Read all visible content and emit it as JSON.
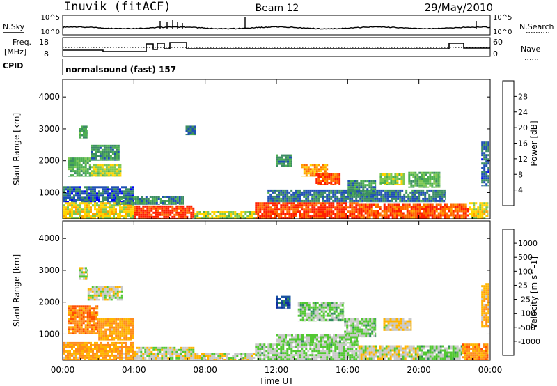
{
  "header": {
    "station": "Inuvik (fitACF)",
    "beam": "Beam 12",
    "date": "29/May/2010"
  },
  "noise_panel": {
    "left_label": "N.Sky",
    "right_label": "N.Search",
    "left_ticks": [
      "10^5",
      "10^0"
    ],
    "right_ticks": [
      "10^5",
      "10^0"
    ]
  },
  "freq_panel": {
    "left_label_line1": "Freq.",
    "left_label_line2": "[MHz]",
    "right_label": "Nave",
    "left_ticks": [
      "18",
      "8"
    ],
    "right_ticks": [
      "60",
      "0"
    ]
  },
  "cpid": {
    "label": "CPID",
    "value": "normalsound (fast) 157"
  },
  "colors": {
    "power_scale": [
      "#0000ff",
      "#1f4fb4",
      "#3c8c64",
      "#4caf50",
      "#7ec850",
      "#ffd400",
      "#ffa000",
      "#ff6a00",
      "#ff2000"
    ],
    "velocity_scale": [
      "#ff0000",
      "#ff5000",
      "#ff8c1a",
      "#ffb400",
      "#c8c8c8",
      "#52c832",
      "#2f8c5a",
      "#1a55a0",
      "#0f2da0"
    ]
  },
  "chart_data": [
    {
      "type": "heatmap",
      "title": "Power",
      "ylabel": "Slant Range [km]",
      "ylim": [
        180,
        4550
      ],
      "yticks": [
        1000,
        2000,
        3000,
        4000
      ],
      "xlim": [
        0,
        24
      ],
      "colorbar": {
        "label": "Power [dB]",
        "ticks": [
          "4",
          "8",
          "12",
          "16",
          "20",
          "24",
          "28"
        ],
        "range": [
          0,
          30
        ]
      },
      "regions": [
        {
          "t": [
            0.0,
            4.0
          ],
          "r": [
            180,
            700
          ],
          "v": 18
        },
        {
          "t": [
            4.0,
            7.4
          ],
          "r": [
            180,
            600
          ],
          "v": 28
        },
        {
          "t": [
            7.4,
            10.8
          ],
          "r": [
            180,
            420
          ],
          "v": 16
        },
        {
          "t": [
            10.8,
            16.6
          ],
          "r": [
            180,
            700
          ],
          "v": 27
        },
        {
          "t": [
            16.6,
            22.8
          ],
          "r": [
            180,
            650
          ],
          "v": 26
        },
        {
          "t": [
            22.8,
            23.9
          ],
          "r": [
            180,
            700
          ],
          "v": 18
        },
        {
          "t": [
            0.0,
            4.0
          ],
          "r": [
            700,
            1200
          ],
          "v": 6
        },
        {
          "t": [
            3.0,
            6.8
          ],
          "r": [
            620,
            900
          ],
          "v": 8
        },
        {
          "t": [
            11.5,
            21.5
          ],
          "r": [
            700,
            1100
          ],
          "v": 7
        },
        {
          "t": [
            0.3,
            1.6
          ],
          "r": [
            1500,
            2100
          ],
          "v": 12
        },
        {
          "t": [
            1.6,
            3.2
          ],
          "r": [
            2000,
            2500
          ],
          "v": 9
        },
        {
          "t": [
            1.6,
            3.3
          ],
          "r": [
            1500,
            1900
          ],
          "v": 16
        },
        {
          "t": [
            0.9,
            1.4
          ],
          "r": [
            2700,
            3100
          ],
          "v": 11
        },
        {
          "t": [
            6.9,
            7.5
          ],
          "r": [
            2800,
            3100
          ],
          "v": 8
        },
        {
          "t": [
            13.4,
            14.9
          ],
          "r": [
            1500,
            1900
          ],
          "v": 22
        },
        {
          "t": [
            14.2,
            15.6
          ],
          "r": [
            1250,
            1600
          ],
          "v": 26
        },
        {
          "t": [
            12.0,
            12.9
          ],
          "r": [
            1800,
            2200
          ],
          "v": 9
        },
        {
          "t": [
            16.0,
            17.6
          ],
          "r": [
            900,
            1400
          ],
          "v": 9
        },
        {
          "t": [
            17.8,
            19.2
          ],
          "r": [
            1250,
            1600
          ],
          "v": 15
        },
        {
          "t": [
            19.4,
            21.2
          ],
          "r": [
            1150,
            1650
          ],
          "v": 12
        },
        {
          "t": [
            23.5,
            23.95
          ],
          "r": [
            1200,
            2600
          ],
          "v": 6
        }
      ]
    },
    {
      "type": "heatmap",
      "title": "Velocity",
      "ylabel": "Slant Range [km]",
      "xlabel": "Time UT",
      "ylim": [
        180,
        4550
      ],
      "yticks": [
        1000,
        2000,
        3000,
        4000
      ],
      "xlim": [
        0,
        24
      ],
      "xticks": [
        "00:00",
        "04:00",
        "08:00",
        "12:00",
        "16:00",
        "20:00",
        "00:00"
      ],
      "colorbar": {
        "label": "Velocity [m s^-1]",
        "ticks": [
          "-1000",
          "-500",
          "-100",
          "-25",
          "25",
          "100",
          "500",
          "1000"
        ],
        "range": [
          -1250,
          1250
        ]
      },
      "regions": [
        {
          "t": [
            0.0,
            4.0
          ],
          "r": [
            180,
            750
          ],
          "v": -400
        },
        {
          "t": [
            4.0,
            7.4
          ],
          "r": [
            180,
            600
          ],
          "v": 0
        },
        {
          "t": [
            7.4,
            10.8
          ],
          "r": [
            180,
            420
          ],
          "v": -30
        },
        {
          "t": [
            10.8,
            16.6
          ],
          "r": [
            180,
            700
          ],
          "v": 150
        },
        {
          "t": [
            16.6,
            20.0
          ],
          "r": [
            180,
            650
          ],
          "v": -40
        },
        {
          "t": [
            20.0,
            22.4
          ],
          "r": [
            180,
            650
          ],
          "v": 200
        },
        {
          "t": [
            22.4,
            23.9
          ],
          "r": [
            180,
            700
          ],
          "v": -500
        },
        {
          "t": [
            0.3,
            2.0
          ],
          "r": [
            1000,
            1900
          ],
          "v": -600
        },
        {
          "t": [
            2.0,
            4.0
          ],
          "r": [
            800,
            1500
          ],
          "v": -400
        },
        {
          "t": [
            1.4,
            3.4
          ],
          "r": [
            2050,
            2500
          ],
          "v": 0
        },
        {
          "t": [
            0.9,
            1.4
          ],
          "r": [
            2700,
            3100
          ],
          "v": 0
        },
        {
          "t": [
            12.0,
            12.8
          ],
          "r": [
            1800,
            2200
          ],
          "v": 900
        },
        {
          "t": [
            13.2,
            15.8
          ],
          "r": [
            1400,
            2000
          ],
          "v": 250
        },
        {
          "t": [
            15.8,
            17.6
          ],
          "r": [
            900,
            1500
          ],
          "v": 200
        },
        {
          "t": [
            18.0,
            19.6
          ],
          "r": [
            1100,
            1500
          ],
          "v": -120
        },
        {
          "t": [
            12.0,
            16.6
          ],
          "r": [
            700,
            1000
          ],
          "v": 150
        },
        {
          "t": [
            23.5,
            23.95
          ],
          "r": [
            1200,
            2600
          ],
          "v": -300
        }
      ]
    }
  ]
}
